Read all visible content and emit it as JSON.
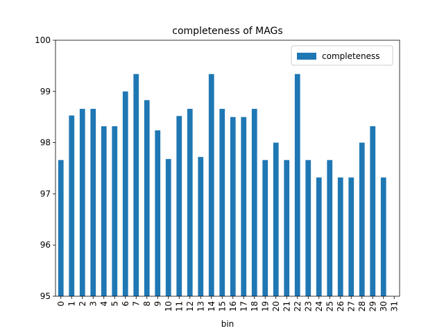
{
  "chart_data": {
    "type": "bar",
    "title": "completeness of MAGs",
    "xlabel": "bin",
    "categories": [
      "0",
      "1",
      "2",
      "3",
      "4",
      "5",
      "6",
      "7",
      "8",
      "9",
      "10",
      "11",
      "12",
      "13",
      "14",
      "15",
      "16",
      "17",
      "18",
      "19",
      "20",
      "21",
      "22",
      "23",
      "24",
      "25",
      "26",
      "27",
      "28",
      "29",
      "30",
      "31"
    ],
    "series": [
      {
        "name": "completeness",
        "color": "#1f77b4",
        "values": [
          97.66,
          98.53,
          98.66,
          98.66,
          98.32,
          98.32,
          99.0,
          99.34,
          98.83,
          98.24,
          97.68,
          98.52,
          98.66,
          97.72,
          99.34,
          98.66,
          98.5,
          98.5,
          98.66,
          97.66,
          98.0,
          97.66,
          99.34,
          97.66,
          97.32,
          97.66,
          97.32,
          97.32,
          98.0,
          98.32,
          97.32,
          null
        ]
      }
    ],
    "ylim": [
      95,
      100
    ],
    "yticks": [
      95,
      96,
      97,
      98,
      99,
      100
    ],
    "grid": false,
    "legend": "upper right"
  }
}
